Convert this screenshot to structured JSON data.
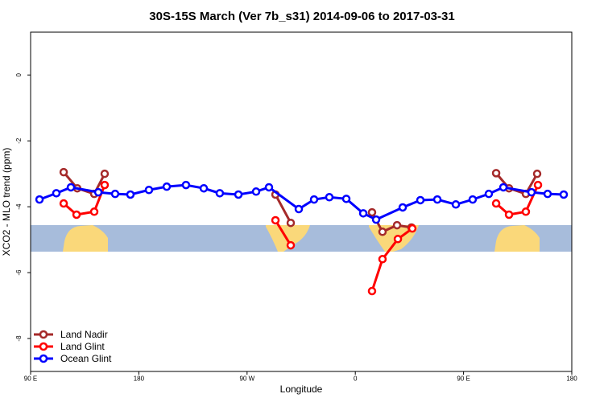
{
  "chart_data": {
    "type": "line",
    "title": "30S-15S March (Ver 7b_s31)   2014-09-06 to 2017-03-31",
    "x_label": "Longitude",
    "y_label": "XCO2 - MLO trend (ppm)",
    "xlim": [
      90,
      540
    ],
    "ylim": [
      -9,
      1.3
    ],
    "xticks": [
      {
        "value": 90,
        "label": "90 E"
      },
      180,
      {
        "value": 270,
        "label": "90 W"
      },
      {
        "value": 360,
        "label": "0"
      },
      {
        "value": 450,
        "label": "90 E"
      },
      {
        "value": 540,
        "label": "180"
      }
    ],
    "yticks": [
      0,
      -2,
      -4,
      -6,
      -8
    ],
    "legend": "bottom-left",
    "series": [
      {
        "name": "Land Nadir",
        "color": "#a52a2a",
        "x": [
          117.5,
          128.8,
          142.9,
          151.6,
          null,
          293.6,
          306.3,
          null,
          373.9,
          382.6,
          394.7,
          406.7,
          null,
          477.1,
          487.8,
          501.8,
          511.2
        ],
        "values": [
          -2.95,
          -3.44,
          -3.61,
          -3.0,
          null,
          -3.63,
          -4.49,
          null,
          -4.17,
          -4.76,
          -4.56,
          -4.63,
          null,
          -2.98,
          -3.44,
          -3.61,
          -3.0
        ]
      },
      {
        "name": "Land Glint",
        "color": "#ff0000",
        "x": [
          117.5,
          128.2,
          142.9,
          151.6,
          null,
          293.6,
          306.3,
          null,
          373.9,
          382.6,
          395.4,
          407.4,
          null,
          477.1,
          487.8,
          501.8,
          511.9
        ],
        "values": [
          -3.9,
          -4.24,
          -4.15,
          -3.34,
          null,
          -4.41,
          -5.17,
          null,
          -6.56,
          -5.59,
          -4.98,
          -4.66,
          null,
          -3.9,
          -4.24,
          -4.15,
          -3.34
        ]
      },
      {
        "name": "Ocean Glint",
        "color": "#0000ff",
        "x": [
          97.4,
          111.4,
          123.5,
          146.3,
          160.3,
          173.0,
          188.4,
          203.2,
          219.2,
          234.0,
          247.3,
          262.8,
          277.5,
          288.2,
          313.0,
          325.7,
          338.4,
          352.5,
          366.6,
          377.3,
          399.4,
          414.1,
          428.2,
          443.6,
          457.6,
          471.0,
          483.1,
          506.5,
          519.9,
          533.3
        ],
        "values": [
          -3.78,
          -3.59,
          -3.41,
          -3.56,
          -3.61,
          -3.63,
          -3.49,
          -3.39,
          -3.34,
          -3.44,
          -3.59,
          -3.63,
          -3.54,
          -3.41,
          -4.07,
          -3.78,
          -3.71,
          -3.76,
          -4.2,
          -4.39,
          -4.02,
          -3.8,
          -3.78,
          -3.93,
          -3.78,
          -3.61,
          -3.41,
          -3.56,
          -3.61,
          -3.63
        ]
      }
    ]
  }
}
